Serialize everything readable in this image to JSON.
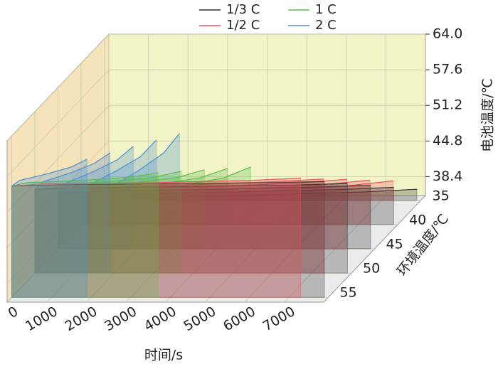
{
  "chart_data": {
    "type": "waterfall3d",
    "xlabel": "时间/s",
    "ylabel": "电池温度/℃",
    "zlabel": "环境温度/℃",
    "xlim": [
      0,
      8000
    ],
    "xticks": [
      0,
      1000,
      2000,
      3000,
      4000,
      5000,
      6000,
      7000
    ],
    "ylim": [
      35,
      64
    ],
    "yticks": [
      38.4,
      44.8,
      51.2,
      57.6,
      {
        "value": 64,
        "label": "64.0"
      }
    ],
    "zlim": [
      34,
      56
    ],
    "zticks": [
      35,
      40,
      45,
      50,
      55
    ],
    "grid": true,
    "series": [
      {
        "name": "1/3 C",
        "color": "#333333",
        "curves": [
          {
            "ambient": 35,
            "x": [
              0,
              1000,
              4000,
              6500,
              7900
            ],
            "values": [
              35,
              35.5,
              36,
              36.5,
              37
            ]
          },
          {
            "ambient": 40,
            "x": [
              0,
              1000,
              4000,
              6500,
              7900
            ],
            "values": [
              40,
              40.4,
              40.9,
              41.3,
              41.7
            ]
          },
          {
            "ambient": 45,
            "x": [
              0,
              1000,
              4000,
              6500,
              7900
            ],
            "values": [
              45,
              45.4,
              45.7,
              46.1,
              46.4
            ]
          },
          {
            "ambient": 50,
            "x": [
              0,
              1000,
              4000,
              6500,
              7900
            ],
            "values": [
              50,
              50.3,
              50.6,
              50.8,
              51.1
            ]
          },
          {
            "ambient": 55,
            "x": [
              0,
              1000,
              4000,
              6500,
              7900
            ],
            "values": [
              55,
              55.2,
              55.4,
              55.6,
              55.8
            ]
          }
        ]
      },
      {
        "name": "1/2 C",
        "color": "#e8545a",
        "curves": [
          {
            "ambient": 35,
            "x": [
              0,
              800,
              3600,
              6000,
              7300
            ],
            "values": [
              35,
              36,
              36.5,
              37.5,
              38.5
            ]
          },
          {
            "ambient": 40,
            "x": [
              0,
              800,
              3600,
              6000,
              7300
            ],
            "values": [
              40,
              40.9,
              41.3,
              42.1,
              43
            ]
          },
          {
            "ambient": 45,
            "x": [
              0,
              800,
              3600,
              6000,
              7300
            ],
            "values": [
              45,
              45.7,
              46.1,
              46.8,
              47.5
            ]
          },
          {
            "ambient": 50,
            "x": [
              0,
              800,
              3600,
              6000,
              7300
            ],
            "values": [
              50,
              50.6,
              50.8,
              51.4,
              51.9
            ]
          },
          {
            "ambient": 55,
            "x": [
              0,
              800,
              3600,
              6000,
              7300
            ],
            "values": [
              55,
              55.4,
              55.6,
              56,
              56.4
            ]
          }
        ]
      },
      {
        "name": "1 C",
        "color": "#5cc04a",
        "curves": [
          {
            "ambient": 35,
            "x": [
              0,
              400,
              1800,
              3000,
              3700
            ],
            "values": [
              35,
              36.5,
              37.5,
              39,
              41
            ]
          },
          {
            "ambient": 40,
            "x": [
              0,
              400,
              1800,
              3000,
              3700
            ],
            "values": [
              40,
              41.3,
              42.1,
              43.4,
              45.1
            ]
          },
          {
            "ambient": 45,
            "x": [
              0,
              400,
              1800,
              3000,
              3700
            ],
            "values": [
              45,
              46.1,
              46.8,
              47.8,
              49.2
            ]
          },
          {
            "ambient": 50,
            "x": [
              0,
              400,
              1800,
              3000,
              3700
            ],
            "values": [
              50,
              50.8,
              51.4,
              52.2,
              53.3
            ]
          },
          {
            "ambient": 55,
            "x": [
              0,
              400,
              1800,
              3000,
              3700
            ],
            "values": [
              55,
              55.6,
              56,
              56.6,
              57.4
            ]
          }
        ]
      },
      {
        "name": "2 C",
        "color": "#4a8fd0",
        "curves": [
          {
            "ambient": 35,
            "x": [
              0,
              200,
              900,
              1500,
              1900
            ],
            "values": [
              35,
              37.5,
              40.5,
              43.5,
              47
            ]
          },
          {
            "ambient": 40,
            "x": [
              0,
              200,
              900,
              1500,
              1900
            ],
            "values": [
              40,
              42.1,
              44.7,
              47.2,
              50.2
            ]
          },
          {
            "ambient": 45,
            "x": [
              0,
              200,
              900,
              1500,
              1900
            ],
            "values": [
              45,
              46.8,
              48.9,
              51,
              53.4
            ]
          },
          {
            "ambient": 50,
            "x": [
              0,
              200,
              900,
              1500,
              1900
            ],
            "values": [
              50,
              51.4,
              53,
              54.7,
              56.6
            ]
          },
          {
            "ambient": 55,
            "x": [
              0,
              200,
              900,
              1500,
              1900
            ],
            "values": [
              55,
              56,
              57.2,
              58.4,
              59.8
            ]
          }
        ]
      }
    ]
  }
}
